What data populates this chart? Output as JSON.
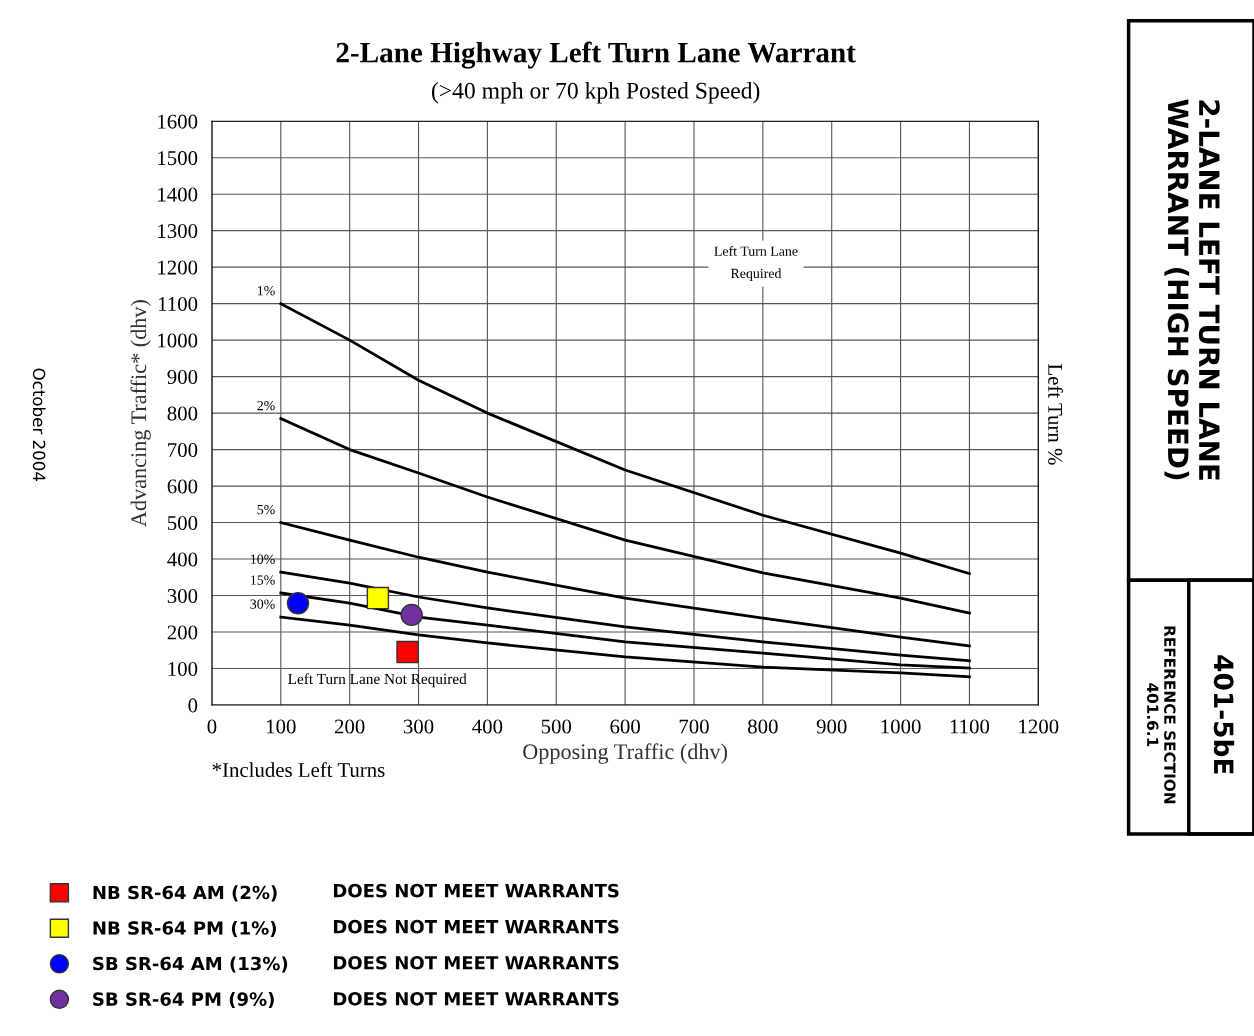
{
  "chart_data": {
    "type": "line",
    "title": "2-Lane Highway Left Turn Lane Warrant",
    "subtitle": "(>40 mph or 70 kph Posted Speed)",
    "xlabel": "Opposing Traffic (dhv)",
    "ylabel": "Advancing Traffic* (dhv)",
    "xlim": [
      0,
      1200
    ],
    "xticks": [
      0,
      100,
      200,
      300,
      400,
      500,
      600,
      700,
      800,
      900,
      1000,
      1100,
      1200
    ],
    "ylim": [
      0,
      1600
    ],
    "yticks": [
      0,
      100,
      200,
      300,
      400,
      500,
      600,
      700,
      800,
      900,
      1000,
      1100,
      1200,
      1300,
      1400,
      1500,
      1600
    ],
    "grid": true,
    "legend": "bottom",
    "series": [
      {
        "name": "1%",
        "color": "#000000",
        "marker": "none",
        "x": [
          100,
          200,
          300,
          400,
          600,
          800,
          1000,
          1100
        ],
        "values": [
          1100,
          1000,
          890,
          800,
          644,
          520,
          416,
          360
        ]
      },
      {
        "name": "2%",
        "color": "#000000",
        "marker": "none",
        "x": [
          100,
          200,
          300,
          400,
          600,
          800,
          1000,
          1100
        ],
        "values": [
          785,
          700,
          636,
          570,
          452,
          362,
          293,
          252
        ]
      },
      {
        "name": "5%",
        "color": "#000000",
        "marker": "none",
        "x": [
          100,
          200,
          300,
          400,
          600,
          800,
          1000,
          1100
        ],
        "values": [
          500,
          452,
          405,
          364,
          293,
          238,
          186,
          162
        ]
      },
      {
        "name": "10%",
        "color": "#000000",
        "marker": "none",
        "x": [
          100,
          200,
          300,
          400,
          600,
          800,
          1000,
          1100
        ],
        "values": [
          364,
          334,
          296,
          266,
          214,
          173,
          137,
          121
        ]
      },
      {
        "name": "15%",
        "color": "#000000",
        "marker": "none",
        "x": [
          100,
          200,
          300,
          400,
          600,
          800,
          1000,
          1100
        ],
        "values": [
          307,
          279,
          241,
          219,
          173,
          142,
          110,
          101
        ]
      },
      {
        "name": "30%",
        "color": "#000000",
        "marker": "none",
        "x": [
          100,
          200,
          300,
          400,
          600,
          800,
          1000,
          1100
        ],
        "values": [
          241,
          219,
          192,
          170,
          132,
          104,
          88,
          77
        ]
      },
      {
        "name": "NB SR-64 AM (2%)",
        "type": "scatter",
        "color": "#ff0000",
        "marker": "square",
        "x": [
          284
        ],
        "values": [
          145
        ]
      },
      {
        "name": "NB SR-64 PM (1%)",
        "type": "scatter",
        "color": "#ffff00",
        "marker": "square",
        "x": [
          241
        ],
        "values": [
          293
        ]
      },
      {
        "name": "SB SR-64 AM (13%)",
        "type": "scatter",
        "color": "#0000ff",
        "marker": "circle",
        "x": [
          125
        ],
        "values": [
          279
        ]
      },
      {
        "name": "SB SR-64 PM (9%)",
        "type": "scatter",
        "color": "#7030a0",
        "marker": "circle",
        "x": [
          290
        ],
        "values": [
          247
        ]
      }
    ],
    "annotations": [
      "Left Turn Lane\nRequired",
      "Left Turn Lane Not Required",
      "*Includes Left Turns",
      "Left Turn %",
      "October 2004",
      "2-LANE LEFT TURN LANE\nWARRANT (HIGH SPEED)",
      "401-5bE",
      "REFERENCE SECTION\n401.6.1",
      "DOES NOT MEET WARRANTS",
      "DOES NOT MEET WARRANTS",
      "DOES NOT MEET WARRANTS",
      "DOES NOT MEET WARRANTS"
    ]
  }
}
